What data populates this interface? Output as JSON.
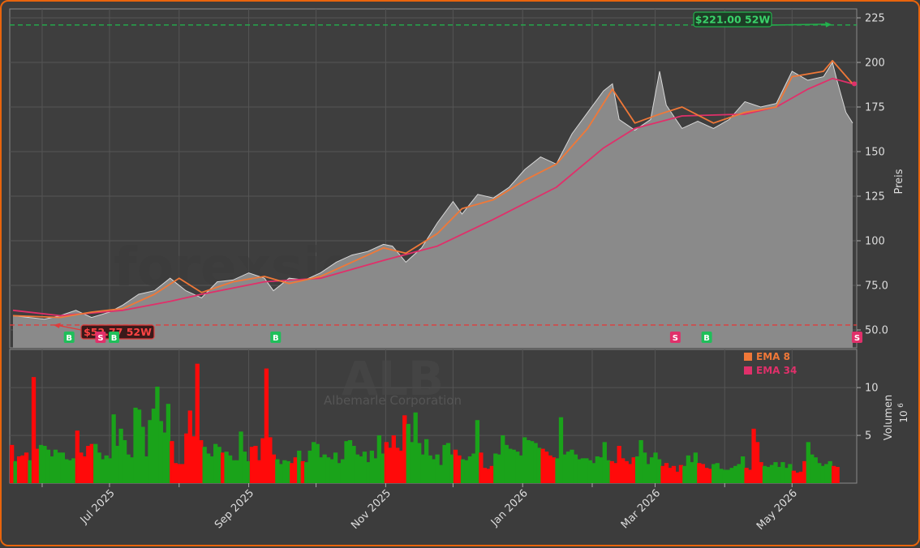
{
  "colors": {
    "background": "#3c3c3c",
    "border": "#e8640c",
    "area_fill": "#8a8a8a",
    "ema_fast": "#f07838",
    "ema_slow": "#e0306a",
    "up": "#1aa31a",
    "down": "#ff0a0a",
    "high_line": "#22b14c",
    "low_line": "#e03c3c",
    "buy_badge": "#1fbf5a",
    "sell_badge": "#e0306a"
  },
  "watermark": {
    "site": "forexsignale.trade",
    "ticker": "ALB",
    "company": "Albemarle Corporation"
  },
  "legend": [
    {
      "label": "EMA 8",
      "color": "#f07838"
    },
    {
      "label": "EMA 34",
      "color": "#e0306a"
    }
  ],
  "chart_data": {
    "type": "line",
    "x_start": "2025-05-19",
    "x_end": "2026-05-28",
    "x_ticks": [
      {
        "date": "2025-07-01",
        "label": "Jul 2025"
      },
      {
        "date": "2025-09-01",
        "label": "Sep 2025"
      },
      {
        "date": "2025-11-01",
        "label": "Nov 2025"
      },
      {
        "date": "2026-01-01",
        "label": "Jan 2026"
      },
      {
        "date": "2026-03-01",
        "label": "Mar 2026"
      },
      {
        "date": "2026-05-01",
        "label": "May 2026"
      }
    ],
    "price": {
      "ylabel": "Preis",
      "ylim": [
        40,
        230
      ],
      "yticks": [
        50.0,
        75.0,
        100,
        125,
        150,
        175,
        200,
        225
      ],
      "ytick_labels": [
        "50.0",
        "75.0",
        "100",
        "125",
        "150",
        "175",
        "200",
        "225"
      ],
      "close": [
        [
          "2025-05-19",
          58
        ],
        [
          "2025-06-02",
          56
        ],
        [
          "2025-06-09",
          58
        ],
        [
          "2025-06-16",
          61
        ],
        [
          "2025-06-23",
          57
        ],
        [
          "2025-07-01",
          60
        ],
        [
          "2025-07-07",
          64
        ],
        [
          "2025-07-14",
          70
        ],
        [
          "2025-07-21",
          72
        ],
        [
          "2025-07-28",
          79
        ],
        [
          "2025-08-04",
          72
        ],
        [
          "2025-08-11",
          68
        ],
        [
          "2025-08-18",
          77
        ],
        [
          "2025-08-25",
          78
        ],
        [
          "2025-09-01",
          82
        ],
        [
          "2025-09-08",
          79
        ],
        [
          "2025-09-12",
          72
        ],
        [
          "2025-09-19",
          79
        ],
        [
          "2025-09-26",
          78
        ],
        [
          "2025-10-03",
          82
        ],
        [
          "2025-10-10",
          88
        ],
        [
          "2025-10-17",
          92
        ],
        [
          "2025-10-24",
          94
        ],
        [
          "2025-10-31",
          98
        ],
        [
          "2025-11-04",
          97
        ],
        [
          "2025-11-10",
          88
        ],
        [
          "2025-11-17",
          96
        ],
        [
          "2025-11-24",
          110
        ],
        [
          "2025-12-01",
          122
        ],
        [
          "2025-12-05",
          115
        ],
        [
          "2025-12-12",
          126
        ],
        [
          "2025-12-19",
          124
        ],
        [
          "2025-12-26",
          130
        ],
        [
          "2026-01-02",
          140
        ],
        [
          "2026-01-09",
          147
        ],
        [
          "2026-01-16",
          143
        ],
        [
          "2026-01-23",
          160
        ],
        [
          "2026-01-30",
          172
        ],
        [
          "2026-02-06",
          184
        ],
        [
          "2026-02-10",
          188
        ],
        [
          "2026-02-13",
          168
        ],
        [
          "2026-02-20",
          162
        ],
        [
          "2026-02-27",
          168
        ],
        [
          "2026-03-03",
          195
        ],
        [
          "2026-03-06",
          176
        ],
        [
          "2026-03-13",
          163
        ],
        [
          "2026-03-20",
          167
        ],
        [
          "2026-03-27",
          163
        ],
        [
          "2026-04-03",
          168
        ],
        [
          "2026-04-10",
          178
        ],
        [
          "2026-04-17",
          175
        ],
        [
          "2026-04-24",
          177
        ],
        [
          "2026-05-01",
          195
        ],
        [
          "2026-05-08",
          190
        ],
        [
          "2026-05-15",
          192
        ],
        [
          "2026-05-19",
          200
        ],
        [
          "2026-05-21",
          190
        ],
        [
          "2026-05-25",
          172
        ],
        [
          "2026-05-28",
          166
        ]
      ],
      "ema_8": [
        [
          "2025-05-19",
          58
        ],
        [
          "2025-06-09",
          57
        ],
        [
          "2025-06-23",
          60
        ],
        [
          "2025-07-07",
          62
        ],
        [
          "2025-07-21",
          70
        ],
        [
          "2025-08-01",
          79
        ],
        [
          "2025-08-11",
          71
        ],
        [
          "2025-08-25",
          77
        ],
        [
          "2025-09-08",
          80
        ],
        [
          "2025-09-19",
          76
        ],
        [
          "2025-10-03",
          80
        ],
        [
          "2025-10-17",
          88
        ],
        [
          "2025-10-31",
          96
        ],
        [
          "2025-11-10",
          93
        ],
        [
          "2025-11-24",
          104
        ],
        [
          "2025-12-05",
          118
        ],
        [
          "2025-12-19",
          123
        ],
        [
          "2026-01-02",
          134
        ],
        [
          "2026-01-16",
          143
        ],
        [
          "2026-01-30",
          163
        ],
        [
          "2026-02-10",
          185
        ],
        [
          "2026-02-20",
          166
        ],
        [
          "2026-03-03",
          171
        ],
        [
          "2026-03-13",
          175
        ],
        [
          "2026-03-27",
          166
        ],
        [
          "2026-04-10",
          172
        ],
        [
          "2026-04-24",
          175
        ],
        [
          "2026-05-01",
          192
        ],
        [
          "2026-05-15",
          195
        ],
        [
          "2026-05-19",
          201
        ],
        [
          "2026-05-28",
          188
        ]
      ],
      "ema_34": [
        [
          "2025-05-19",
          61
        ],
        [
          "2025-06-09",
          58
        ],
        [
          "2025-07-07",
          61
        ],
        [
          "2025-07-28",
          66
        ],
        [
          "2025-08-11",
          70
        ],
        [
          "2025-09-08",
          77
        ],
        [
          "2025-10-03",
          79
        ],
        [
          "2025-10-31",
          89
        ],
        [
          "2025-11-24",
          97
        ],
        [
          "2025-12-19",
          112
        ],
        [
          "2026-01-16",
          130
        ],
        [
          "2026-02-06",
          152
        ],
        [
          "2026-02-20",
          163
        ],
        [
          "2026-03-13",
          170
        ],
        [
          "2026-04-10",
          171
        ],
        [
          "2026-04-24",
          175
        ],
        [
          "2026-05-08",
          185
        ],
        [
          "2026-05-19",
          191
        ],
        [
          "2026-05-28",
          188
        ]
      ],
      "high_52w": {
        "value": 221.0,
        "label": "$221.00 52W",
        "date": "2026-05-19"
      },
      "low_52w": {
        "value": 52.77,
        "label": "$52.77 52W",
        "date": "2025-06-06"
      },
      "last_close": 166
    },
    "signals": [
      {
        "date": "2025-06-13",
        "type": "B"
      },
      {
        "date": "2025-06-27",
        "type": "S"
      },
      {
        "date": "2025-07-03",
        "type": "B"
      },
      {
        "date": "2025-09-13",
        "type": "B"
      },
      {
        "date": "2026-03-10",
        "type": "S"
      },
      {
        "date": "2026-03-24",
        "type": "B"
      },
      {
        "date": "2026-05-30",
        "type": "S"
      }
    ],
    "volume": {
      "ylabel": "Volumen",
      "unit": "10",
      "unit_exp": "6",
      "ylim": [
        0,
        14
      ],
      "yticks": [
        5,
        10
      ],
      "ytick_labels": [
        "5",
        "10"
      ],
      "values": [
        4.0,
        2.3,
        2.8,
        2.9,
        3.2,
        2.4,
        11.1,
        3.6,
        4.0,
        3.9,
        3.5,
        2.8,
        3.5,
        3.2,
        3.2,
        2.5,
        2.4,
        2.6,
        5.5,
        3.2,
        2.8,
        3.9,
        4.1,
        4.1,
        3.2,
        2.5,
        2.9,
        2.6,
        7.2,
        3.9,
        5.7,
        4.5,
        3.0,
        2.7,
        7.9,
        7.7,
        5.9,
        2.8,
        6.6,
        7.8,
        10.1,
        6.5,
        5.3,
        8.3,
        4.4,
        2.1,
        2.0,
        2.0,
        5.2,
        7.6,
        4.9,
        12.5,
        4.5,
        3.8,
        3.1,
        2.8,
        4.1,
        3.8,
        3.2,
        3.3,
        2.9,
        2.4,
        2.4,
        5.4,
        3.3,
        2.3,
        3.8,
        3.9,
        2.4,
        4.7,
        12.0,
        4.8,
        3.0,
        2.5,
        2.0,
        2.4,
        2.3,
        2.1,
        2.7,
        3.4,
        2.3,
        2.2,
        3.4,
        4.3,
        4.1,
        2.7,
        3.0,
        2.7,
        2.5,
        3.2,
        2.1,
        2.5,
        4.4,
        4.5,
        3.9,
        3.0,
        2.8,
        3.3,
        2.2,
        3.4,
        2.6,
        5.0,
        3.1,
        4.3,
        3.7,
        5.0,
        3.7,
        3.4,
        7.1,
        6.2,
        4.3,
        7.4,
        4.2,
        3.0,
        4.6,
        2.9,
        2.5,
        3.0,
        1.9,
        4.0,
        4.2,
        3.0,
        3.5,
        2.9,
        2.5,
        2.4,
        2.8,
        3.1,
        6.6,
        3.2,
        1.6,
        1.5,
        1.8,
        3.1,
        3.0,
        5.0,
        4.0,
        3.6,
        3.5,
        3.3,
        2.9,
        4.8,
        4.5,
        4.4,
        4.2,
        3.7,
        3.6,
        3.3,
        2.9,
        2.7,
        2.6,
        6.9,
        3.0,
        3.3,
        3.5,
        3.0,
        2.5,
        2.6,
        2.6,
        2.4,
        2.1,
        2.8,
        2.7,
        4.3,
        2.4,
        2.3,
        2.1,
        3.9,
        2.6,
        2.3,
        2.0,
        2.7,
        2.8,
        4.5,
        3.2,
        2.0,
        2.7,
        3.2,
        2.5,
        1.8,
        2.1,
        1.6,
        1.8,
        1.2,
        1.9,
        1.8,
        2.9,
        2.2,
        3.2,
        2.1,
        2.0,
        1.6,
        1.5,
        2.0,
        2.1,
        1.5,
        1.4,
        1.4,
        1.6,
        1.8,
        2.0,
        2.8,
        1.6,
        1.4,
        5.7,
        4.3,
        2.2,
        1.8,
        1.7,
        1.9,
        2.2,
        1.7,
        2.2,
        1.6,
        2.0,
        1.3,
        1.1,
        1.2,
        2.3,
        4.3,
        3.0,
        2.7,
        2.1,
        1.8,
        2.0,
        2.3,
        1.8,
        1.7
      ]
    }
  }
}
